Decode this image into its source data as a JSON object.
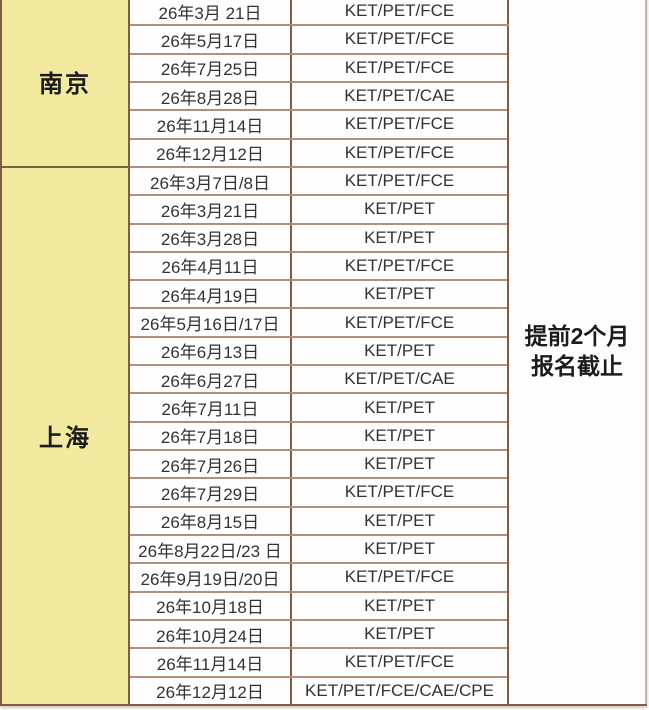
{
  "table": {
    "title_hint": "cambridge-exam-schedule-table",
    "columns": [
      "city",
      "date",
      "exams",
      "registration-deadline"
    ],
    "deadline_note": {
      "line1": "提前2个月",
      "line2": "报名截止"
    },
    "sections": [
      {
        "city": "南京",
        "rows": [
          {
            "date": "26年3月 21日",
            "exams": "KET/PET/FCE"
          },
          {
            "date": "26年5月17日",
            "exams": "KET/PET/FCE"
          },
          {
            "date": "26年7月25日",
            "exams": "KET/PET/FCE"
          },
          {
            "date": "26年8月28日",
            "exams": "KET/PET/CAE"
          },
          {
            "date": "26年11月14日",
            "exams": "KET/PET/FCE"
          },
          {
            "date": "26年12月12日",
            "exams": "KET/PET/FCE"
          }
        ]
      },
      {
        "city": "上海",
        "rows": [
          {
            "date": "26年3月7日/8日",
            "exams": "KET/PET/FCE"
          },
          {
            "date": "26年3月21日",
            "exams": "KET/PET"
          },
          {
            "date": "26年3月28日",
            "exams": "KET/PET"
          },
          {
            "date": "26年4月11日",
            "exams": "KET/PET/FCE"
          },
          {
            "date": "26年4月19日",
            "exams": "KET/PET"
          },
          {
            "date": "26年5月16日/17日",
            "exams": "KET/PET/FCE"
          },
          {
            "date": "26年6月13日",
            "exams": "KET/PET"
          },
          {
            "date": "26年6月27日",
            "exams": "KET/PET/CAE"
          },
          {
            "date": "26年7月11日",
            "exams": "KET/PET"
          },
          {
            "date": "26年7月18日",
            "exams": "KET/PET"
          },
          {
            "date": "26年7月26日",
            "exams": "KET/PET"
          },
          {
            "date": "26年7月29日",
            "exams": "KET/PET/FCE"
          },
          {
            "date": "26年8月15日",
            "exams": "KET/PET"
          },
          {
            "date": "26年8月22日/23 日",
            "exams": "KET/PET"
          },
          {
            "date": "26年9月19日/20日",
            "exams": "KET/PET/FCE"
          },
          {
            "date": "26年10月18日",
            "exams": "KET/PET"
          },
          {
            "date": "26年10月24日",
            "exams": "KET/PET"
          },
          {
            "date": "26年11月14日",
            "exams": "KET/PET/FCE"
          },
          {
            "date": "26年12月12日",
            "exams": "KET/PET/FCE/CAE/CPE"
          }
        ]
      }
    ],
    "colors": {
      "city_column_bg": "#f1ea9f",
      "cell_bg": "#fefefe",
      "border_dark": "#7f5c48",
      "border_light": "#ae907f",
      "text": "#333333"
    }
  }
}
